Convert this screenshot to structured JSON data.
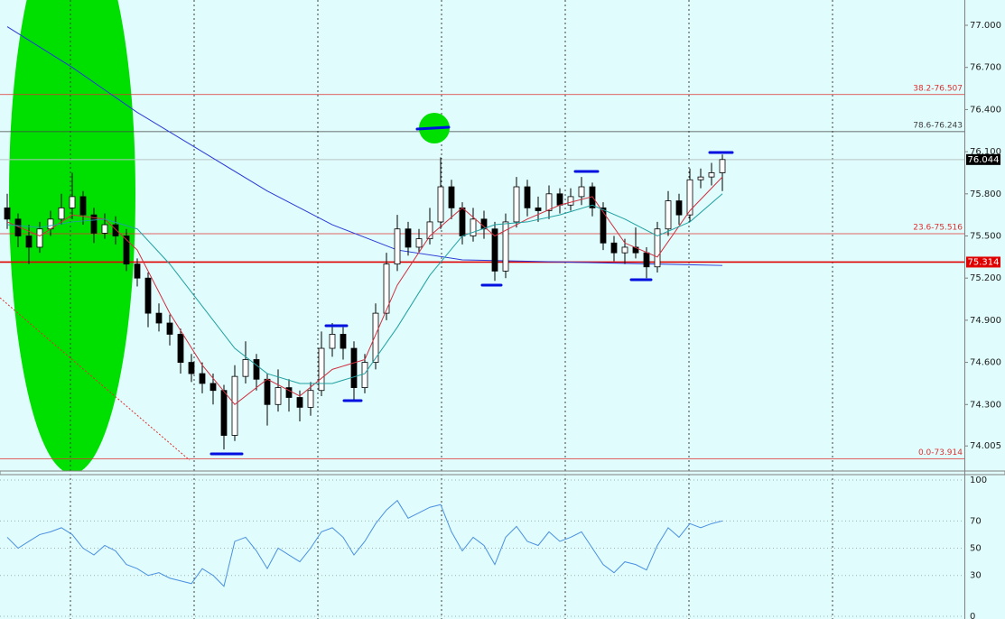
{
  "chart_data": [
    {
      "type": "candlestick",
      "ylim": [
        73.82,
        77.18
      ],
      "yticks": [
        {
          "value": 77,
          "label": "77.000"
        },
        {
          "value": 76.7,
          "label": "76.700"
        },
        {
          "value": 76.4,
          "label": "76.400"
        },
        {
          "value": 76.1,
          "label": "76.100"
        },
        {
          "value": 75.8,
          "label": "75.800"
        },
        {
          "value": 75.5,
          "label": "75.500"
        },
        {
          "value": 75.2,
          "label": "75.200"
        },
        {
          "value": 74.9,
          "label": "74.900"
        },
        {
          "value": 74.6,
          "label": "74.600"
        },
        {
          "value": 74.3,
          "label": "74.300"
        },
        74.005
      ],
      "up_color": "#ffffff",
      "down_color": "#000000",
      "ohlc": [
        [
          75.7,
          75.8,
          75.55,
          75.62
        ],
        [
          75.62,
          75.66,
          75.42,
          75.5
        ],
        [
          75.5,
          75.58,
          75.3,
          75.42
        ],
        [
          75.42,
          75.6,
          75.38,
          75.55
        ],
        [
          75.55,
          75.68,
          75.5,
          75.62
        ],
        [
          75.62,
          75.8,
          75.58,
          75.7
        ],
        [
          75.7,
          75.95,
          75.62,
          75.78
        ],
        [
          75.78,
          75.82,
          75.58,
          75.65
        ],
        [
          75.65,
          75.7,
          75.45,
          75.52
        ],
        [
          75.52,
          75.66,
          75.48,
          75.58
        ],
        [
          75.58,
          75.64,
          75.44,
          75.5
        ],
        [
          75.5,
          75.55,
          75.25,
          75.3
        ],
        [
          75.3,
          75.34,
          75.14,
          75.2
        ],
        [
          75.2,
          75.24,
          74.85,
          74.95
        ],
        [
          74.95,
          75.02,
          74.82,
          74.88
        ],
        [
          74.88,
          74.94,
          74.72,
          74.8
        ],
        [
          74.8,
          74.84,
          74.52,
          74.6
        ],
        [
          74.6,
          74.66,
          74.46,
          74.52
        ],
        [
          74.52,
          74.6,
          74.38,
          74.45
        ],
        [
          74.45,
          74.52,
          74.3,
          74.4
        ],
        [
          74.4,
          74.44,
          73.98,
          74.08
        ],
        [
          74.08,
          74.58,
          74.04,
          74.5
        ],
        [
          74.5,
          74.75,
          74.45,
          74.62
        ],
        [
          74.62,
          74.66,
          74.4,
          74.48
        ],
        [
          74.48,
          74.52,
          74.15,
          74.3
        ],
        [
          74.3,
          74.55,
          74.25,
          74.42
        ],
        [
          74.42,
          74.48,
          74.25,
          74.35
        ],
        [
          74.35,
          74.4,
          74.18,
          74.28
        ],
        [
          74.28,
          74.46,
          74.22,
          74.4
        ],
        [
          74.4,
          74.82,
          74.36,
          74.7
        ],
        [
          74.7,
          74.88,
          74.64,
          74.8
        ],
        [
          74.8,
          74.85,
          74.62,
          74.7
        ],
        [
          74.7,
          74.75,
          74.32,
          74.42
        ],
        [
          74.42,
          74.66,
          74.38,
          74.6
        ],
        [
          74.6,
          75.02,
          74.55,
          74.95
        ],
        [
          74.95,
          75.38,
          74.9,
          75.3
        ],
        [
          75.3,
          75.65,
          75.25,
          75.55
        ],
        [
          75.55,
          75.6,
          75.36,
          75.42
        ],
        [
          75.42,
          75.55,
          75.38,
          75.48
        ],
        [
          75.48,
          75.7,
          75.44,
          75.6
        ],
        [
          75.6,
          76.06,
          75.55,
          75.85
        ],
        [
          75.85,
          75.9,
          75.62,
          75.7
        ],
        [
          75.7,
          75.74,
          75.44,
          75.5
        ],
        [
          75.5,
          75.7,
          75.46,
          75.62
        ],
        [
          75.62,
          75.68,
          75.48,
          75.55
        ],
        [
          75.55,
          75.6,
          75.18,
          75.25
        ],
        [
          75.25,
          75.66,
          75.2,
          75.6
        ],
        [
          75.6,
          75.92,
          75.56,
          75.85
        ],
        [
          75.85,
          75.9,
          75.64,
          75.7
        ],
        [
          75.7,
          75.78,
          75.6,
          75.68
        ],
        [
          75.68,
          75.86,
          75.62,
          75.8
        ],
        [
          75.8,
          75.84,
          75.66,
          75.72
        ],
        [
          75.72,
          75.84,
          75.68,
          75.78
        ],
        [
          75.78,
          75.92,
          75.72,
          75.85
        ],
        [
          75.85,
          75.88,
          75.64,
          75.7
        ],
        [
          75.7,
          75.74,
          75.4,
          75.45
        ],
        [
          75.45,
          75.5,
          75.32,
          75.38
        ],
        [
          75.38,
          75.48,
          75.3,
          75.42
        ],
        [
          75.42,
          75.56,
          75.34,
          75.38
        ],
        [
          75.38,
          75.42,
          75.2,
          75.28
        ],
        [
          75.28,
          75.6,
          75.24,
          75.55
        ],
        [
          75.55,
          75.82,
          75.5,
          75.75
        ],
        [
          75.75,
          75.8,
          75.58,
          75.65
        ],
        [
          75.65,
          75.98,
          75.6,
          75.9
        ],
        [
          75.9,
          75.98,
          75.84,
          75.92
        ],
        [
          75.92,
          76.02,
          75.86,
          75.95
        ],
        [
          75.95,
          76.08,
          75.82,
          76.044
        ]
      ],
      "moving_averages": [
        {
          "color": "#2a3ad8",
          "x": [
            0,
            6,
            12,
            18,
            24,
            30,
            36,
            42,
            48,
            54,
            60,
            66
          ],
          "values": [
            76.99,
            76.7,
            76.38,
            76.1,
            75.82,
            75.58,
            75.4,
            75.33,
            75.32,
            75.31,
            75.3,
            75.29
          ]
        },
        {
          "color": "#d03040",
          "x": [
            0,
            3,
            6,
            9,
            12,
            15,
            18,
            21,
            24,
            27,
            30,
            33,
            36,
            39,
            42,
            45,
            48,
            51,
            54,
            57,
            60,
            63,
            66
          ],
          "values": [
            75.6,
            75.5,
            75.65,
            75.62,
            75.4,
            74.95,
            74.58,
            74.3,
            74.48,
            74.36,
            74.55,
            74.62,
            75.15,
            75.5,
            75.7,
            75.5,
            75.62,
            75.72,
            75.78,
            75.45,
            75.35,
            75.68,
            75.92
          ]
        },
        {
          "color": "#20a0a0",
          "x": [
            0,
            3,
            6,
            9,
            12,
            15,
            18,
            21,
            24,
            27,
            30,
            33,
            36,
            39,
            42,
            45,
            48,
            51,
            54,
            57,
            60,
            63,
            66
          ],
          "values": [
            75.58,
            75.56,
            75.6,
            75.62,
            75.55,
            75.3,
            75.0,
            74.7,
            74.52,
            74.45,
            74.45,
            74.52,
            74.85,
            75.22,
            75.5,
            75.58,
            75.6,
            75.65,
            75.72,
            75.62,
            75.5,
            75.6,
            75.8
          ]
        }
      ],
      "levels": [
        {
          "label": "38.2-76.507",
          "value": 76.507,
          "color": "#e03030"
        },
        {
          "label": "78.6-76.243",
          "value": 76.243,
          "color": "#404040"
        },
        {
          "label": "23.6-75.516",
          "value": 75.516,
          "color": "#e03030"
        },
        {
          "label": "0.0-73.914",
          "value": 73.914,
          "color": "#e03030"
        }
      ],
      "markers": [
        {
          "value": 76.044,
          "color": "#000000",
          "line": "#b8c4c4"
        },
        {
          "value": 75.314,
          "color": "#e00000",
          "line": "#e00000"
        }
      ]
    },
    {
      "type": "line",
      "ylim": [
        -2,
        104
      ],
      "yticks": [
        100,
        70,
        50,
        30,
        0
      ],
      "color": "#4a90e0",
      "values": [
        58,
        50,
        55,
        60,
        62,
        65,
        60,
        50,
        45,
        52,
        48,
        38,
        35,
        30,
        32,
        28,
        26,
        24,
        35,
        30,
        22,
        55,
        58,
        48,
        35,
        50,
        45,
        40,
        50,
        62,
        65,
        58,
        45,
        55,
        68,
        78,
        85,
        72,
        76,
        80,
        82,
        62,
        48,
        58,
        52,
        38,
        58,
        66,
        55,
        52,
        62,
        55,
        58,
        62,
        50,
        38,
        32,
        40,
        38,
        34,
        52,
        65,
        58,
        68,
        65,
        68,
        70
      ]
    }
  ]
}
